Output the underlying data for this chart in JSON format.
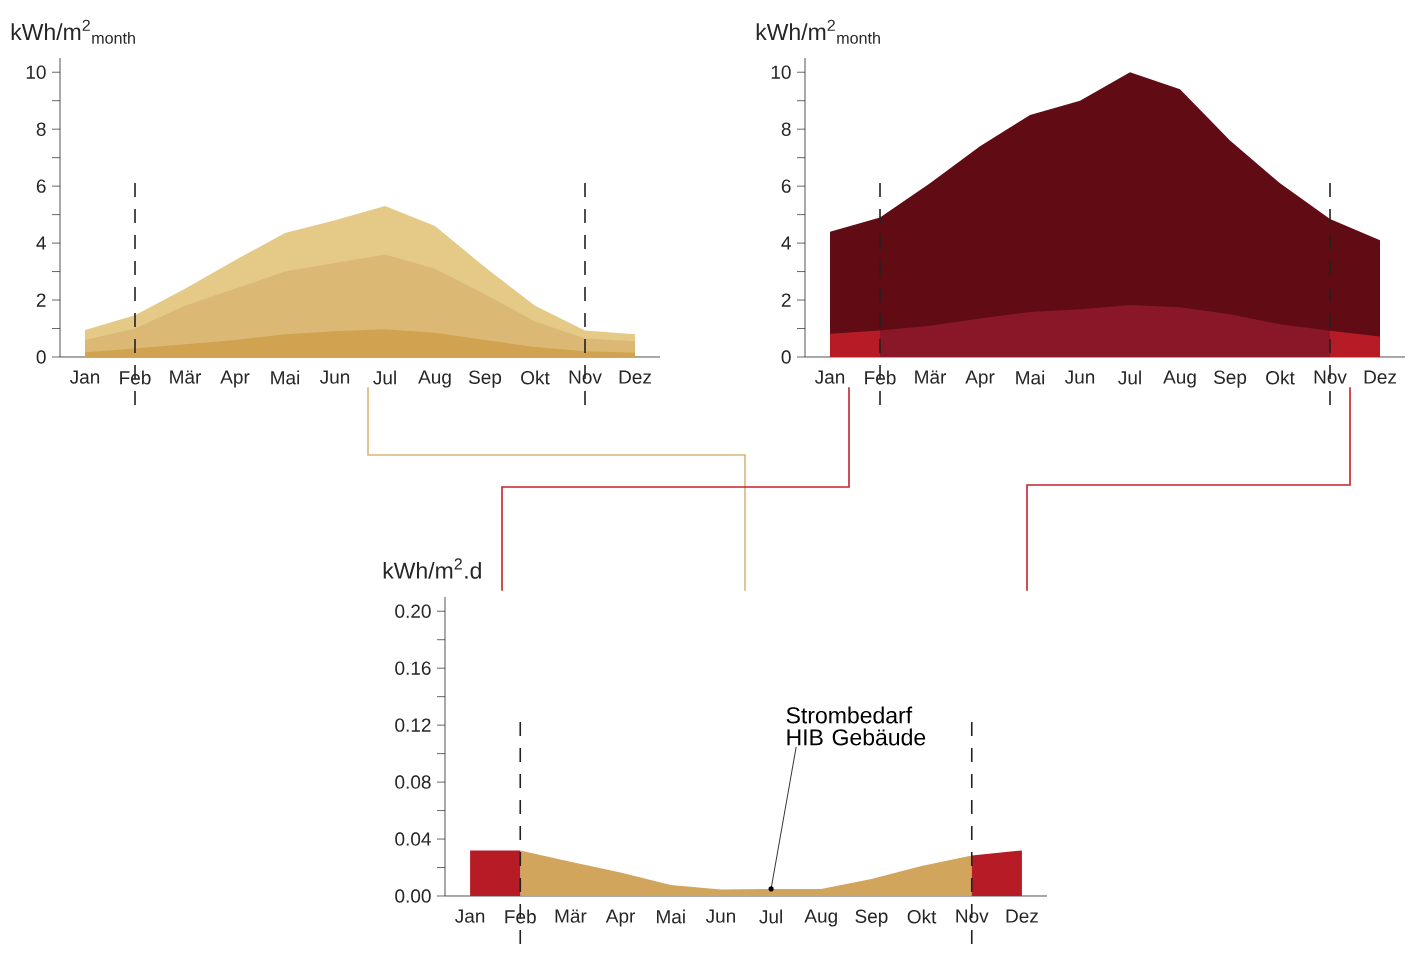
{
  "chart_data": [
    {
      "type": "area",
      "ylabel": "kWh/m$^{2}$$_{month}$",
      "categories": [
        "Jan",
        "Feb",
        "Mär",
        "Apr",
        "Mai",
        "Jun",
        "Jul",
        "Aug",
        "Sep",
        "Okt",
        "Nov",
        "Dez"
      ],
      "series": [
        {
          "color": "#e5c987",
          "values": [
            0.95,
            1.47,
            2.4,
            3.4,
            4.35,
            4.8,
            5.3,
            4.6,
            3.15,
            1.8,
            0.93,
            0.8
          ]
        },
        {
          "color": "#dbb975",
          "values": [
            0.6,
            1.0,
            1.8,
            2.4,
            3.0,
            3.3,
            3.6,
            3.1,
            2.2,
            1.25,
            0.65,
            0.55
          ]
        },
        {
          "color": "#d1a350",
          "values": [
            0.17,
            0.3,
            0.45,
            0.6,
            0.8,
            0.9,
            0.97,
            0.85,
            0.6,
            0.35,
            0.2,
            0.15
          ]
        }
      ],
      "ylim": [
        0,
        10.5
      ],
      "yticks": [
        0,
        {
          "value": 1,
          "label": null
        },
        2,
        {
          "value": 3,
          "label": null
        },
        4,
        {
          "value": 5,
          "label": null
        },
        6,
        {
          "value": 7,
          "label": null
        },
        8,
        {
          "value": 9,
          "label": null
        },
        10
      ],
      "ref_lines": [
        {
          "axis": "x",
          "value": "Feb",
          "line_style": "dashed",
          "color": "#222222"
        },
        {
          "axis": "x",
          "value": "Nov",
          "line_style": "dashed",
          "color": "#222222"
        }
      ]
    },
    {
      "type": "area",
      "ylabel": "kWh/m$^{2}$$_{month}$",
      "categories": [
        "Jan",
        "Feb",
        "Mär",
        "Apr",
        "Mai",
        "Jun",
        "Jul",
        "Aug",
        "Sep",
        "Okt",
        "Nov",
        "Dez"
      ],
      "series": [
        {
          "color": "#610c14",
          "values": [
            4.4,
            4.9,
            6.1,
            7.4,
            8.5,
            9.0,
            10.0,
            9.4,
            7.6,
            6.1,
            4.85,
            4.1
          ]
        },
        {
          "color": "#8a1728",
          "values": [
            null,
            0.93,
            1.1,
            1.35,
            1.58,
            1.68,
            1.83,
            1.75,
            1.5,
            1.15,
            0.92,
            null
          ]
        },
        {
          "color": "#b71c26",
          "values": [
            0.82,
            0.93,
            null,
            null,
            null,
            null,
            null,
            null,
            null,
            null,
            0.92,
            0.72
          ]
        }
      ],
      "ylim": [
        0,
        10.5
      ],
      "yticks": [
        0,
        {
          "value": 1,
          "label": null
        },
        2,
        {
          "value": 3,
          "label": null
        },
        4,
        {
          "value": 5,
          "label": null
        },
        6,
        {
          "value": 7,
          "label": null
        },
        8,
        {
          "value": 9,
          "label": null
        },
        10
      ],
      "ref_lines": [
        {
          "axis": "x",
          "value": "Feb",
          "line_style": "dashed",
          "color": "#222222"
        },
        {
          "axis": "x",
          "value": "Nov",
          "line_style": "dashed",
          "color": "#222222"
        }
      ]
    },
    {
      "type": "area",
      "ylabel": "kWh/m$^{2}$.d",
      "categories": [
        "Jan",
        "Feb",
        "Mär",
        "Apr",
        "Mai",
        "Jun",
        "Jul",
        "Aug",
        "Sep",
        "Okt",
        "Nov",
        "Dez"
      ],
      "series": [
        {
          "color": "#d2a55c",
          "values": [
            null,
            0.032,
            0.024,
            0.0165,
            0.0077,
            0.0046,
            0.005,
            0.005,
            0.012,
            0.021,
            0.0285,
            null
          ]
        },
        {
          "color": "#b71c26",
          "values": [
            0.032,
            0.032,
            null,
            null,
            null,
            null,
            null,
            null,
            null,
            null,
            0.0285,
            0.032
          ]
        }
      ],
      "ylim": [
        0,
        0.21
      ],
      "yticks": [
        {
          "value": 0,
          "label": "0.00"
        },
        {
          "value": 0.02,
          "label": null
        },
        {
          "value": 0.04,
          "label": "0.04"
        },
        {
          "value": 0.06,
          "label": null
        },
        {
          "value": 0.08,
          "label": "0.08"
        },
        {
          "value": 0.1,
          "label": null
        },
        {
          "value": 0.12,
          "label": "0.12"
        },
        {
          "value": 0.14,
          "label": null
        },
        {
          "value": 0.16,
          "label": "0.16"
        },
        {
          "value": 0.18,
          "label": null
        },
        {
          "value": 0.2,
          "label": "0.20"
        }
      ],
      "ref_lines": [
        {
          "axis": "x",
          "value": "Feb",
          "line_style": "dashed",
          "color": "#222222"
        },
        {
          "axis": "x",
          "value": "Nov",
          "line_style": "dashed",
          "color": "#222222"
        }
      ],
      "annotations": [
        {
          "text": "Strombedarf HIB Gebäude",
          "x": "Jul",
          "y": 0.005
        }
      ]
    }
  ]
}
